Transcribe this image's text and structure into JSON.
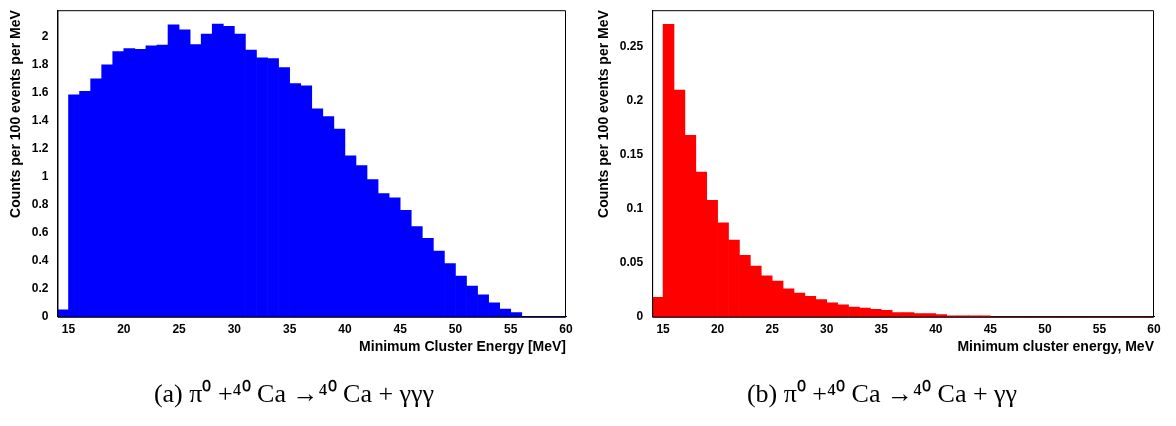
{
  "chart_data": [
    {
      "type": "histogram",
      "xlabel": "Minimum Cluster Energy [MeV]",
      "ylabel": "Counts per 100 events per MeV",
      "color": "#0000ff",
      "bins": [
        14,
        15,
        16,
        17,
        18,
        19,
        20,
        21,
        22,
        23,
        24,
        25,
        26,
        27,
        28,
        29,
        30,
        31,
        32,
        33,
        34,
        35,
        36,
        37,
        38,
        39,
        40,
        41,
        42,
        43,
        44,
        45,
        46,
        47,
        48,
        49,
        50,
        51,
        52,
        53,
        54,
        55,
        56,
        57,
        58,
        59,
        60
      ],
      "values": [
        0.05,
        1.585,
        1.61,
        1.7,
        1.8,
        1.895,
        1.915,
        1.91,
        1.935,
        1.94,
        2.085,
        2.05,
        1.945,
        2.02,
        2.09,
        2.075,
        2.02,
        1.905,
        1.85,
        1.845,
        1.78,
        1.665,
        1.65,
        1.485,
        1.43,
        1.34,
        1.15,
        1.08,
        0.98,
        0.88,
        0.85,
        0.76,
        0.645,
        0.56,
        0.47,
        0.38,
        0.29,
        0.22,
        0.157,
        0.1,
        0.056,
        0.03,
        0,
        0,
        0,
        0
      ],
      "xlim": [
        14,
        60
      ],
      "xticks": [
        15,
        20,
        25,
        30,
        35,
        40,
        45,
        50,
        55,
        60
      ],
      "ylim": [
        0,
        2.19
      ],
      "yticks": [
        0,
        0.2,
        0.4,
        0.6,
        0.8,
        1,
        1.2,
        1.4,
        1.6,
        1.8,
        2
      ],
      "grid": false,
      "legend": false,
      "annotations": [
        "(a) π⁰ +⁴⁰ Ca →⁴⁰ Ca + γγγ"
      ]
    },
    {
      "type": "histogram",
      "xlabel": "Minimum cluster energy, MeV",
      "ylabel": "Counts per 100 events per MeV",
      "color": "#ff0000",
      "bins": [
        14,
        15,
        16,
        17,
        18,
        19,
        20,
        21,
        22,
        23,
        24,
        25,
        26,
        27,
        28,
        29,
        30,
        31,
        32,
        33,
        34,
        35,
        36,
        37,
        38,
        39,
        40,
        41,
        42,
        43,
        44,
        45,
        46,
        47,
        48,
        49,
        50,
        51,
        52,
        53,
        54,
        55,
        56,
        57,
        58,
        59,
        60
      ],
      "values": [
        0.018,
        0.271,
        0.21,
        0.168,
        0.134,
        0.108,
        0.087,
        0.071,
        0.057,
        0.047,
        0.038,
        0.033,
        0.026,
        0.022,
        0.019,
        0.016,
        0.013,
        0.011,
        0.009,
        0.008,
        0.007,
        0.006,
        0.004,
        0.004,
        0.003,
        0.003,
        0.002,
        0.001,
        0.001,
        0.001,
        0.001,
        0,
        0,
        0,
        0,
        0,
        0,
        0,
        0,
        0,
        0,
        0,
        0,
        0,
        0,
        0
      ],
      "xlim": [
        14,
        60
      ],
      "xticks": [
        15,
        20,
        25,
        30,
        35,
        40,
        45,
        50,
        55,
        60
      ],
      "ylim": [
        0,
        0.284
      ],
      "yticks": [
        0,
        0.05,
        0.1,
        0.15,
        0.2,
        0.25
      ],
      "grid": false,
      "legend": false,
      "annotations": [
        "(b) π⁰ +⁴⁰ Ca →⁴⁰ Ca + γγ"
      ]
    }
  ]
}
